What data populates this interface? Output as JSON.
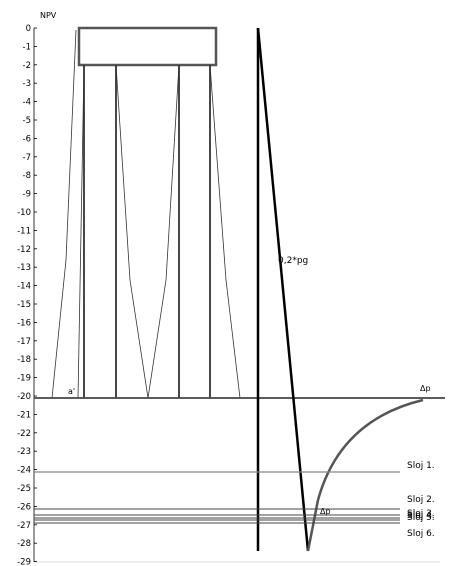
{
  "diagram": {
    "axis_title": "NPV",
    "y_ticks": [
      "0",
      "-1",
      "-2",
      "-3",
      "-4",
      "-5",
      "-6",
      "-7",
      "-8",
      "-9",
      "-10",
      "-11",
      "-12",
      "-13",
      "-14",
      "-15",
      "-16",
      "-17",
      "-18",
      "-19",
      "-20",
      "-21",
      "-22",
      "-23",
      "-24",
      "-25",
      "-26",
      "-27",
      "-28",
      "-29"
    ],
    "labels": {
      "pressure_line": "0,2*pg",
      "delta_p_top": "Δp",
      "delta_p_bottom": "Δp",
      "a_prime": "a'"
    },
    "layers": [
      "Sloj 1.",
      "Sloj 2.",
      "Sloj 3.",
      "Sloj 4.",
      "Sloj 5.",
      "Sloj 6."
    ]
  }
}
